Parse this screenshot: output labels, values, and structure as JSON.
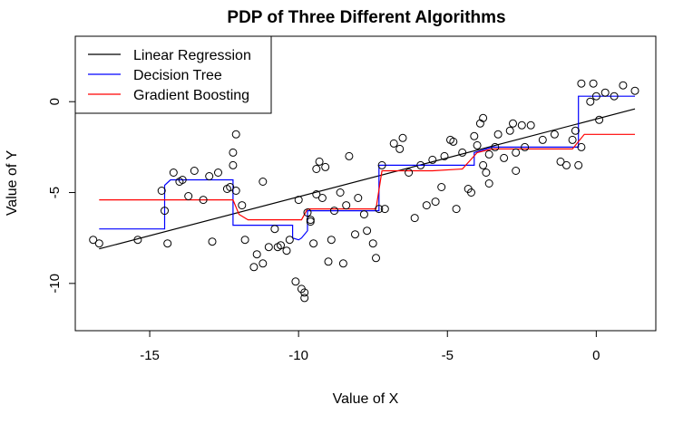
{
  "chart_data": {
    "type": "scatter",
    "title": "PDP of Three Different Algorithms",
    "xlabel": "Value of X",
    "ylabel": "Value of Y",
    "xlim": [
      -17.5,
      2.0
    ],
    "ylim": [
      -12.6,
      3.6
    ],
    "xticks": [
      -15,
      -10,
      -5,
      0
    ],
    "yticks": [
      0,
      -5,
      -10
    ],
    "grid": false,
    "legend_position": "top-left",
    "points": [
      [
        -16.9,
        -7.6
      ],
      [
        -16.7,
        -7.8
      ],
      [
        -15.4,
        -7.6
      ],
      [
        -14.6,
        -4.9
      ],
      [
        -14.5,
        -6.0
      ],
      [
        -14.4,
        -7.8
      ],
      [
        -14.2,
        -3.9
      ],
      [
        -14.0,
        -4.4
      ],
      [
        -13.9,
        -4.3
      ],
      [
        -13.7,
        -5.2
      ],
      [
        -13.5,
        -3.8
      ],
      [
        -13.2,
        -5.4
      ],
      [
        -13.0,
        -4.1
      ],
      [
        -12.9,
        -7.7
      ],
      [
        -12.7,
        -3.9
      ],
      [
        -12.4,
        -4.8
      ],
      [
        -12.3,
        -4.7
      ],
      [
        -12.2,
        -2.8
      ],
      [
        -12.2,
        -3.5
      ],
      [
        -12.1,
        -1.8
      ],
      [
        -12.1,
        -4.9
      ],
      [
        -11.9,
        -5.7
      ],
      [
        -11.8,
        -7.6
      ],
      [
        -11.5,
        -9.1
      ],
      [
        -11.4,
        -8.4
      ],
      [
        -11.2,
        -4.4
      ],
      [
        -11.2,
        -8.9
      ],
      [
        -11.0,
        -8.0
      ],
      [
        -10.8,
        -7.0
      ],
      [
        -10.7,
        -8.0
      ],
      [
        -10.6,
        -7.9
      ],
      [
        -10.4,
        -8.2
      ],
      [
        -10.3,
        -7.6
      ],
      [
        -10.1,
        -9.9
      ],
      [
        -10.0,
        -5.4
      ],
      [
        -9.9,
        -10.3
      ],
      [
        -9.8,
        -10.8
      ],
      [
        -9.8,
        -10.5
      ],
      [
        -9.7,
        -6.1
      ],
      [
        -9.6,
        -6.5
      ],
      [
        -9.6,
        -6.6
      ],
      [
        -9.5,
        -7.8
      ],
      [
        -9.4,
        -5.1
      ],
      [
        -9.4,
        -3.7
      ],
      [
        -9.3,
        -3.3
      ],
      [
        -9.2,
        -5.3
      ],
      [
        -9.1,
        -3.6
      ],
      [
        -9.0,
        -8.8
      ],
      [
        -8.9,
        -7.6
      ],
      [
        -8.8,
        -6.0
      ],
      [
        -8.6,
        -5.0
      ],
      [
        -8.5,
        -8.9
      ],
      [
        -8.4,
        -5.7
      ],
      [
        -8.3,
        -3.0
      ],
      [
        -8.1,
        -7.3
      ],
      [
        -8.0,
        -5.3
      ],
      [
        -7.8,
        -6.2
      ],
      [
        -7.7,
        -7.1
      ],
      [
        -7.5,
        -7.8
      ],
      [
        -7.4,
        -8.6
      ],
      [
        -7.3,
        -5.9
      ],
      [
        -7.2,
        -3.5
      ],
      [
        -7.1,
        -5.9
      ],
      [
        -6.8,
        -2.3
      ],
      [
        -6.6,
        -2.6
      ],
      [
        -6.5,
        -2.0
      ],
      [
        -6.3,
        -3.9
      ],
      [
        -6.1,
        -6.4
      ],
      [
        -5.9,
        -3.5
      ],
      [
        -5.7,
        -5.7
      ],
      [
        -5.5,
        -3.2
      ],
      [
        -5.4,
        -5.5
      ],
      [
        -5.2,
        -4.7
      ],
      [
        -5.1,
        -3.0
      ],
      [
        -4.9,
        -2.1
      ],
      [
        -4.8,
        -2.2
      ],
      [
        -4.7,
        -5.9
      ],
      [
        -4.5,
        -2.8
      ],
      [
        -4.3,
        -4.8
      ],
      [
        -4.2,
        -5.0
      ],
      [
        -4.1,
        -1.9
      ],
      [
        -4.0,
        -2.4
      ],
      [
        -3.9,
        -1.2
      ],
      [
        -3.8,
        -3.5
      ],
      [
        -3.8,
        -0.9
      ],
      [
        -3.7,
        -3.9
      ],
      [
        -3.6,
        -2.9
      ],
      [
        -3.6,
        -4.5
      ],
      [
        -3.4,
        -2.5
      ],
      [
        -3.3,
        -1.8
      ],
      [
        -3.1,
        -3.1
      ],
      [
        -2.9,
        -1.6
      ],
      [
        -2.8,
        -1.2
      ],
      [
        -2.7,
        -2.8
      ],
      [
        -2.7,
        -3.8
      ],
      [
        -2.5,
        -1.3
      ],
      [
        -2.4,
        -2.5
      ],
      [
        -2.2,
        -1.3
      ],
      [
        -1.8,
        -2.1
      ],
      [
        -1.4,
        -1.8
      ],
      [
        -1.2,
        -3.3
      ],
      [
        -1.0,
        -3.5
      ],
      [
        -0.8,
        -2.1
      ],
      [
        -0.7,
        -1.6
      ],
      [
        -0.6,
        -3.5
      ],
      [
        -0.5,
        -2.5
      ],
      [
        -0.5,
        1.0
      ],
      [
        -0.2,
        0.0
      ],
      [
        -0.1,
        1.0
      ],
      [
        0.0,
        0.3
      ],
      [
        0.1,
        -1.0
      ],
      [
        0.3,
        0.5
      ],
      [
        0.6,
        0.3
      ],
      [
        0.9,
        0.9
      ],
      [
        1.3,
        0.6
      ]
    ],
    "series": [
      {
        "name": "Linear Regression",
        "color": "#000000",
        "x": [
          -16.7,
          1.3
        ],
        "y": [
          -8.1,
          -0.4
        ]
      },
      {
        "name": "Decision Tree",
        "color": "#0000ff",
        "x": [
          -16.7,
          -14.5,
          -14.5,
          -14.3,
          -12.2,
          -12.2,
          -11.7,
          -10.2,
          -10.2,
          -10.0,
          -9.9,
          -9.7,
          -9.7,
          -7.3,
          -7.3,
          -4.1,
          -4.1,
          -3.5,
          -0.6,
          -0.6,
          1.3
        ],
        "y": [
          -7.0,
          -7.0,
          -4.6,
          -4.3,
          -4.3,
          -6.8,
          -6.8,
          -6.8,
          -7.5,
          -7.6,
          -7.5,
          -7.1,
          -6.0,
          -6.0,
          -3.5,
          -3.5,
          -2.8,
          -2.5,
          -2.5,
          0.3,
          0.3
        ]
      },
      {
        "name": "Gradient Boosting",
        "color": "#ff0000",
        "x": [
          -16.7,
          -12.2,
          -12.0,
          -11.7,
          -9.9,
          -9.7,
          -7.4,
          -7.2,
          -5.5,
          -4.5,
          -4.0,
          -3.5,
          -0.8,
          -0.4,
          1.3
        ],
        "y": [
          -5.4,
          -5.4,
          -6.2,
          -6.5,
          -6.5,
          -5.9,
          -5.9,
          -3.8,
          -3.8,
          -3.7,
          -2.8,
          -2.6,
          -2.6,
          -1.8,
          -1.8
        ]
      }
    ]
  }
}
